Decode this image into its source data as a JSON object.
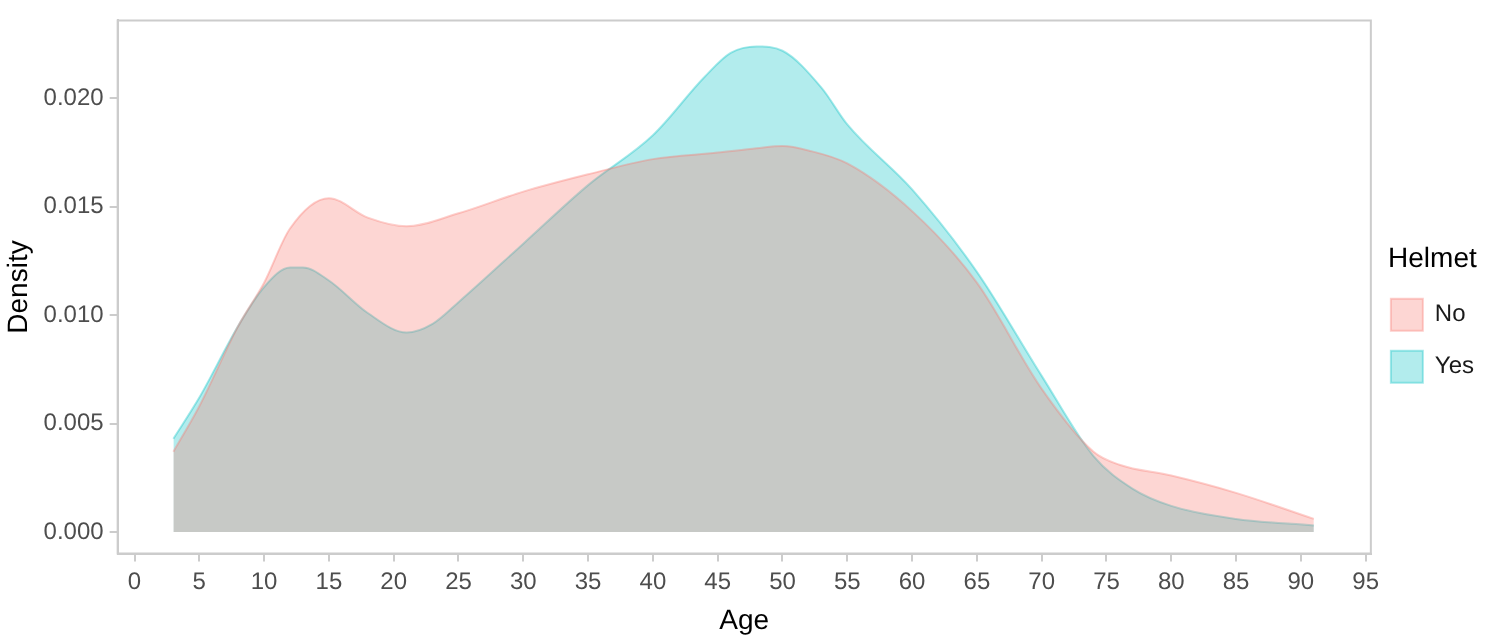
{
  "chart_data": {
    "type": "area",
    "xlabel": "Age",
    "ylabel": "Density",
    "legend_title": "Helmet",
    "legend": "right",
    "xlim": [
      -1.3,
      95.4
    ],
    "ylim": [
      -0.001,
      0.0236
    ],
    "xticks": [
      0,
      5,
      10,
      15,
      20,
      25,
      30,
      35,
      40,
      45,
      50,
      55,
      60,
      65,
      70,
      75,
      80,
      85,
      90,
      95
    ],
    "yticks": [
      {
        "value": 0,
        "label": "0.000"
      },
      0.005,
      {
        "value": 0.01,
        "label": "0.010"
      },
      0.015,
      {
        "value": 0.02,
        "label": "0.020"
      }
    ],
    "series": [
      {
        "name": "No",
        "color": "#f8766d",
        "x": [
          3,
          5,
          8,
          10,
          12,
          15,
          18,
          21,
          25,
          30,
          35,
          40,
          45,
          48,
          50,
          52,
          55,
          60,
          65,
          70,
          74,
          76,
          80,
          85,
          91
        ],
        "values": [
          0.0037,
          0.0058,
          0.0095,
          0.0115,
          0.014,
          0.0154,
          0.0145,
          0.0141,
          0.0147,
          0.0157,
          0.0165,
          0.0172,
          0.0175,
          0.0177,
          0.0178,
          0.0176,
          0.017,
          0.0148,
          0.0115,
          0.0066,
          0.0037,
          0.0031,
          0.0026,
          0.0018,
          0.0006
        ]
      },
      {
        "name": "Yes",
        "color": "#00bfc4",
        "x": [
          3,
          5,
          8,
          10,
          12,
          13,
          15,
          18,
          21,
          23,
          25,
          30,
          35,
          40,
          44,
          46,
          48,
          50,
          53,
          55,
          60,
          65,
          70,
          74,
          77,
          80,
          85,
          91
        ],
        "values": [
          0.0043,
          0.0062,
          0.0095,
          0.0113,
          0.0122,
          0.0122,
          0.0116,
          0.0101,
          0.0092,
          0.0096,
          0.0106,
          0.0133,
          0.016,
          0.0183,
          0.021,
          0.0221,
          0.0224,
          0.0222,
          0.0205,
          0.0188,
          0.0158,
          0.012,
          0.0072,
          0.0035,
          0.002,
          0.0012,
          0.0006,
          0.0003
        ]
      }
    ]
  }
}
